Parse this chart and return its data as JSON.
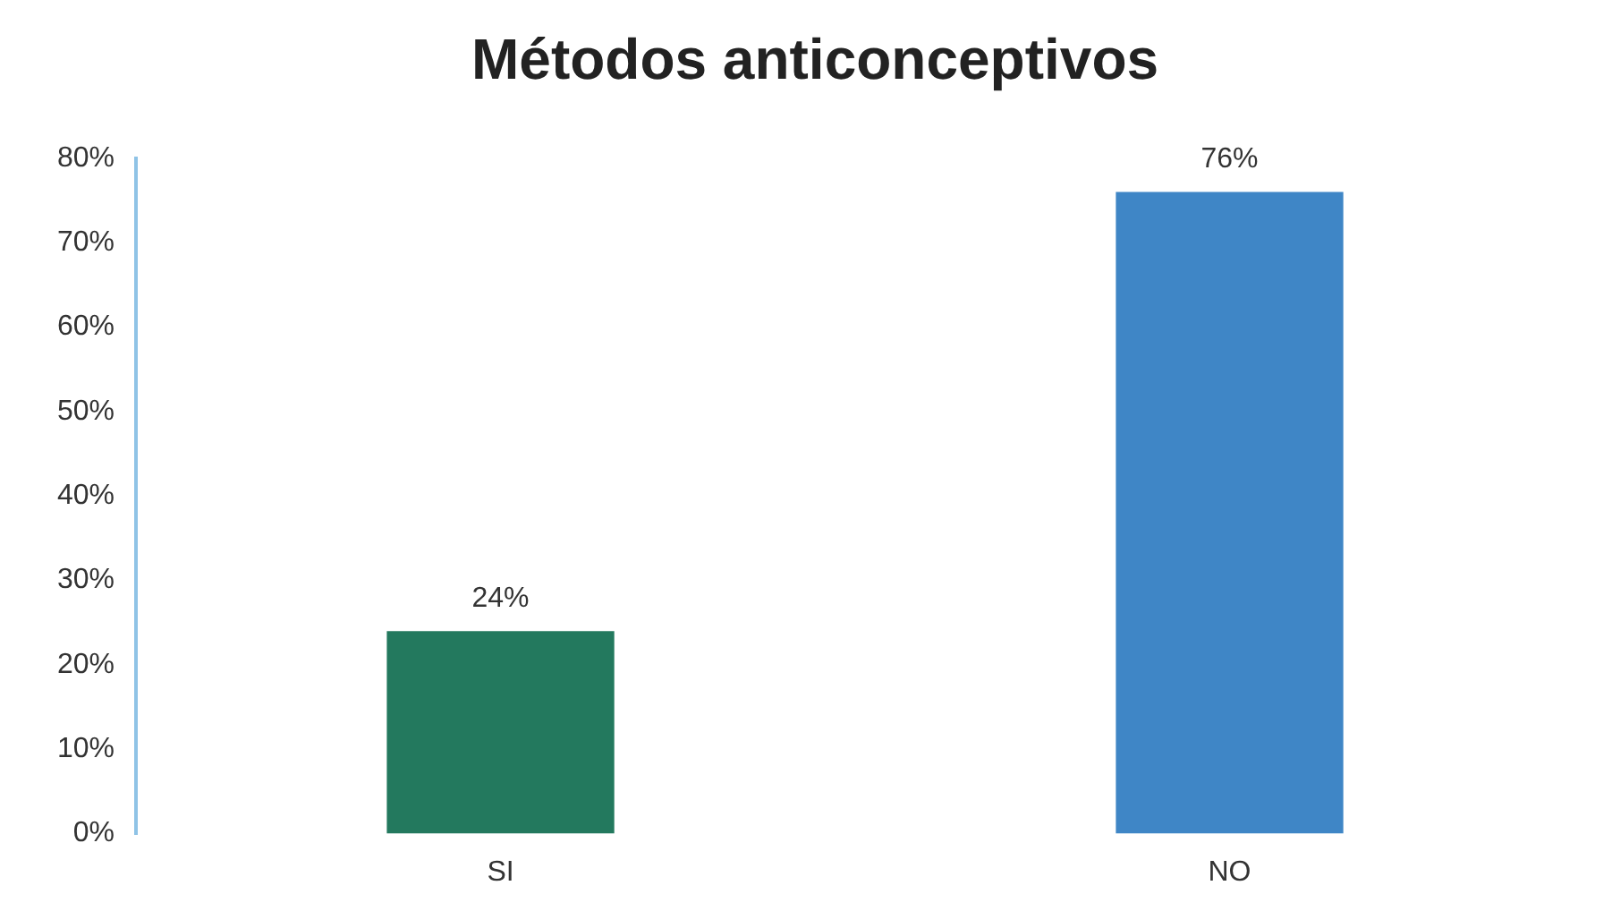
{
  "chart_data": {
    "type": "bar",
    "title": "Métodos anticonceptivos",
    "categories": [
      "SI",
      "NO"
    ],
    "values": [
      24,
      76
    ],
    "colors": [
      "#23795e",
      "#3f86c6"
    ],
    "value_labels": [
      "24%",
      "76%"
    ],
    "ylim": [
      0,
      80
    ],
    "yticks": [
      {
        "value": 0,
        "label": "0%"
      },
      {
        "value": 10,
        "label": "10%"
      },
      {
        "value": 20,
        "label": "20%"
      },
      {
        "value": 30,
        "label": "30%"
      },
      {
        "value": 40,
        "label": "40%"
      },
      {
        "value": 50,
        "label": "50%"
      },
      {
        "value": 60,
        "label": "60%"
      },
      {
        "value": 70,
        "label": "70%"
      },
      {
        "value": 80,
        "label": "80%"
      }
    ],
    "grid": false,
    "legend": false
  }
}
